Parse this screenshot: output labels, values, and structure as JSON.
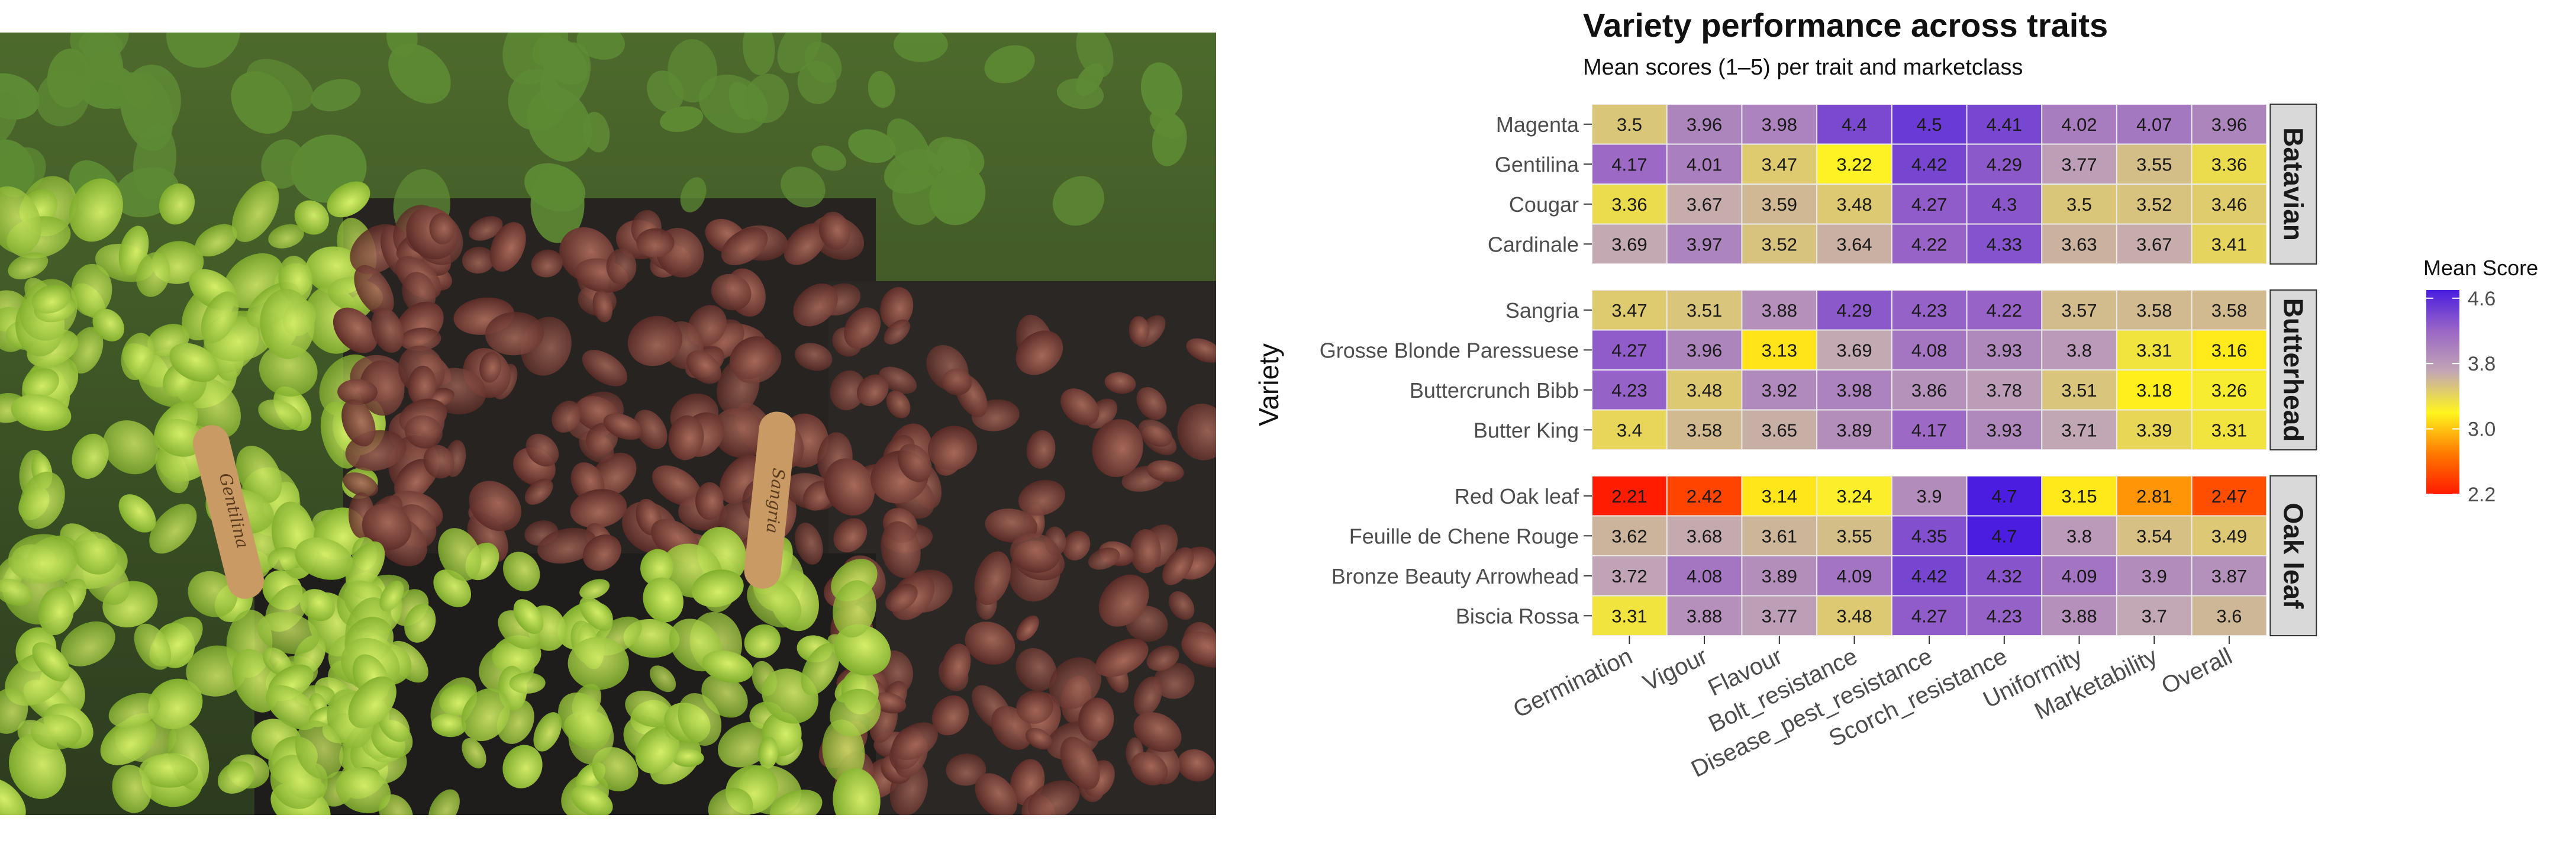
{
  "photo": {
    "label_left": "Gentilina",
    "label_right": "Sangria"
  },
  "chart_data": {
    "type": "heatmap",
    "title": "Variety performance across traits",
    "subtitle": "Mean scores (1–5) per trait and marketclass",
    "ylabel": "Variety",
    "traits": [
      "Germination",
      "Vigour",
      "Flavour",
      "Bolt_resistance",
      "Disease_pest_resistance",
      "Scorch_resistance",
      "Uniformity",
      "Marketability",
      "Overall"
    ],
    "legend": {
      "title": "Mean Score",
      "ticks": [
        "4.6",
        "3.8",
        "3.0",
        "2.2"
      ],
      "range": [
        2.2,
        4.7
      ],
      "colors": [
        "#ff1a00",
        "#ff7a00",
        "#fff51e",
        "#c2a7b4",
        "#9a66c6",
        "#4a1de0"
      ]
    },
    "panels": [
      {
        "name": "Batavian",
        "varieties": [
          "Magenta",
          "Gentilina",
          "Cougar",
          "Cardinale"
        ],
        "values": [
          [
            3.5,
            3.96,
            3.98,
            4.4,
            4.5,
            4.41,
            4.02,
            4.07,
            3.96
          ],
          [
            4.17,
            4.01,
            3.47,
            3.22,
            4.42,
            4.29,
            3.77,
            3.55,
            3.36
          ],
          [
            3.36,
            3.67,
            3.59,
            3.48,
            4.27,
            4.3,
            3.5,
            3.52,
            3.46
          ],
          [
            3.69,
            3.97,
            3.52,
            3.64,
            4.22,
            4.33,
            3.63,
            3.67,
            3.41
          ]
        ]
      },
      {
        "name": "Butterhead",
        "varieties": [
          "Sangria",
          "Grosse Blonde Paressuese",
          "Buttercrunch Bibb",
          "Butter King"
        ],
        "values": [
          [
            3.47,
            3.51,
            3.88,
            4.29,
            4.23,
            4.22,
            3.57,
            3.58,
            3.58
          ],
          [
            4.27,
            3.96,
            3.13,
            3.69,
            4.08,
            3.93,
            3.8,
            3.31,
            3.16
          ],
          [
            4.23,
            3.48,
            3.92,
            3.98,
            3.86,
            3.78,
            3.51,
            3.18,
            3.26
          ],
          [
            3.4,
            3.58,
            3.65,
            3.89,
            4.17,
            3.93,
            3.71,
            3.39,
            3.31
          ]
        ]
      },
      {
        "name": "Oak leaf",
        "varieties": [
          "Red Oak leaf",
          "Feuille de Chene Rouge",
          "Bronze Beauty Arrowhead",
          "Biscia Rossa"
        ],
        "values": [
          [
            2.21,
            2.42,
            3.14,
            3.24,
            3.9,
            4.7,
            3.15,
            2.81,
            2.47
          ],
          [
            3.62,
            3.68,
            3.61,
            3.55,
            4.35,
            4.7,
            3.8,
            3.54,
            3.49
          ],
          [
            3.72,
            4.08,
            3.89,
            4.09,
            4.42,
            4.32,
            4.09,
            3.9,
            3.87
          ],
          [
            3.31,
            3.88,
            3.77,
            3.48,
            4.27,
            4.23,
            3.88,
            3.7,
            3.6
          ]
        ]
      }
    ]
  }
}
